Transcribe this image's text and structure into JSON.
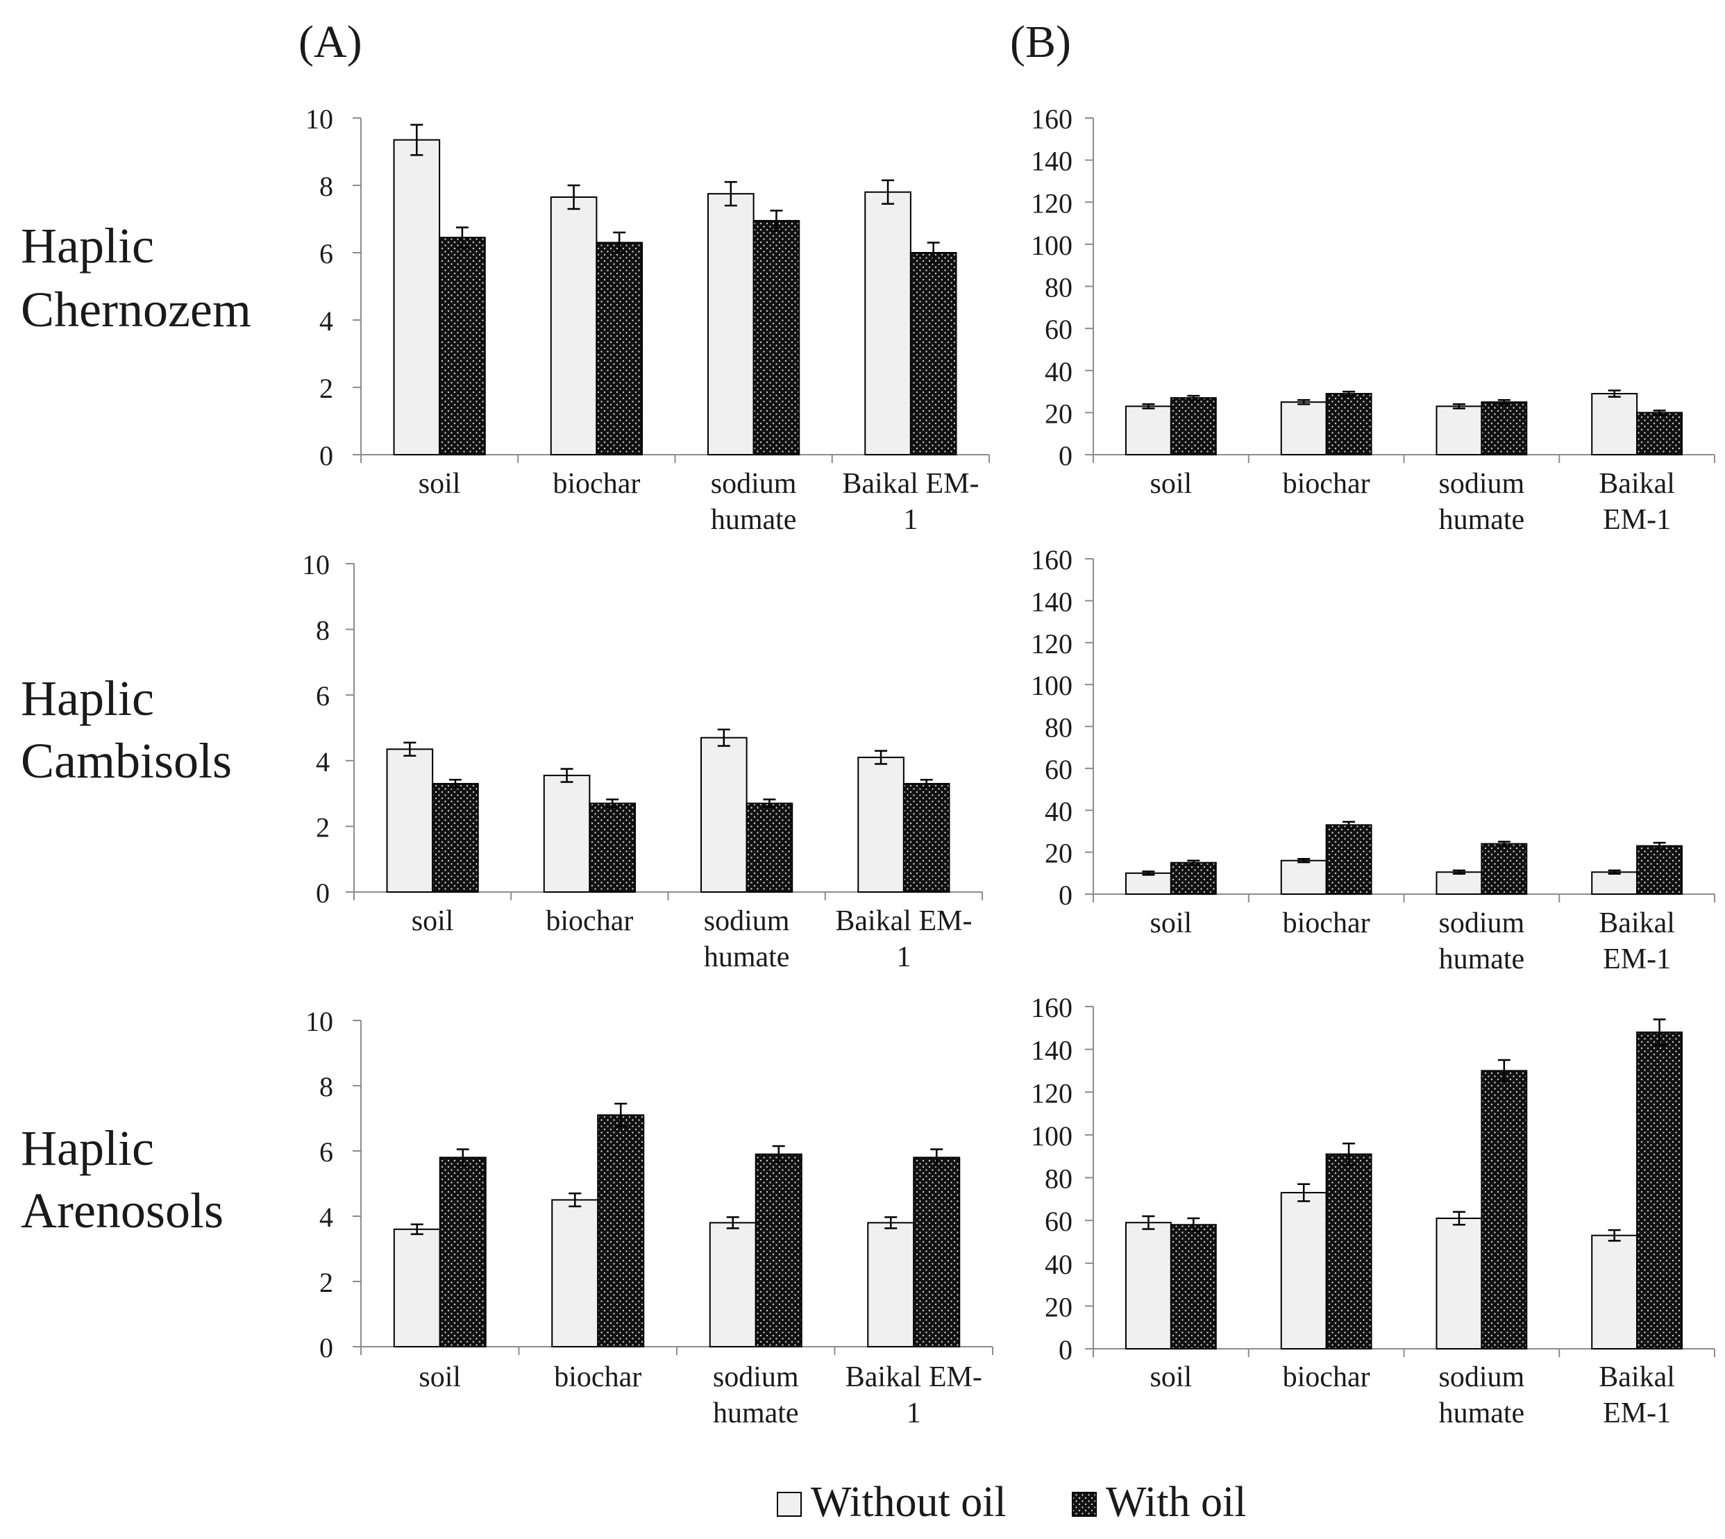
{
  "panel_labels": [
    "(A)",
    "(B)"
  ],
  "row_labels": [
    [
      "Haplic",
      "Chernozem"
    ],
    [
      "Haplic",
      "Cambisols"
    ],
    [
      "Haplic",
      "Arenosols"
    ]
  ],
  "legend": {
    "without_oil": "Without oil",
    "with_oil": "With oil"
  },
  "colors": {
    "without_oil_fill": "#f0f0f0",
    "with_oil_fill": "#111111",
    "axis": "#8c8c8c",
    "bar_outline": "#000000"
  },
  "chart_data": [
    {
      "id": "A-chernozem",
      "type": "bar",
      "title": "",
      "xlabel": "",
      "ylabel": "",
      "ylim": [
        0,
        10
      ],
      "yticks": [
        0,
        2,
        4,
        6,
        8,
        10
      ],
      "categories": [
        [
          "soil"
        ],
        [
          "biochar"
        ],
        [
          "sodium",
          "humate"
        ],
        [
          "Baikal EM-",
          "1"
        ]
      ],
      "series": [
        {
          "name": "Without oil",
          "values": [
            9.35,
            7.65,
            7.75,
            7.8
          ],
          "errors": [
            0.45,
            0.35,
            0.35,
            0.35
          ]
        },
        {
          "name": "With oil",
          "values": [
            6.45,
            6.3,
            6.95,
            6.0
          ],
          "errors": [
            0.3,
            0.3,
            0.3,
            0.3
          ]
        }
      ]
    },
    {
      "id": "B-chernozem",
      "type": "bar",
      "title": "",
      "xlabel": "",
      "ylabel": "",
      "ylim": [
        0,
        160
      ],
      "yticks": [
        0,
        20,
        40,
        60,
        80,
        100,
        120,
        140,
        160
      ],
      "categories": [
        [
          "soil"
        ],
        [
          "biochar"
        ],
        [
          "sodium",
          "humate"
        ],
        [
          "Baikal",
          "EM-1"
        ]
      ],
      "series": [
        {
          "name": "Without oil",
          "values": [
            23,
            25,
            23,
            29
          ],
          "errors": [
            1,
            1,
            1,
            1.5
          ]
        },
        {
          "name": "With oil",
          "values": [
            27,
            29,
            25,
            20
          ],
          "errors": [
            1,
            1,
            1,
            1
          ]
        }
      ]
    },
    {
      "id": "A-cambisols",
      "type": "bar",
      "title": "",
      "xlabel": "",
      "ylabel": "",
      "ylim": [
        0,
        10
      ],
      "yticks": [
        0,
        2,
        4,
        6,
        8,
        10
      ],
      "categories": [
        [
          "soil"
        ],
        [
          "biochar"
        ],
        [
          "sodium",
          "humate"
        ],
        [
          "Baikal EM-",
          "1"
        ]
      ],
      "series": [
        {
          "name": "Without oil",
          "values": [
            4.35,
            3.55,
            4.7,
            4.1
          ],
          "errors": [
            0.2,
            0.2,
            0.25,
            0.2
          ]
        },
        {
          "name": "With oil",
          "values": [
            3.3,
            2.7,
            2.7,
            3.3
          ],
          "errors": [
            0.12,
            0.12,
            0.12,
            0.12
          ]
        }
      ]
    },
    {
      "id": "B-cambisols",
      "type": "bar",
      "title": "",
      "xlabel": "",
      "ylabel": "",
      "ylim": [
        0,
        160
      ],
      "yticks": [
        0,
        20,
        40,
        60,
        80,
        100,
        120,
        140,
        160
      ],
      "categories": [
        [
          "soil"
        ],
        [
          "biochar"
        ],
        [
          "sodium",
          "humate"
        ],
        [
          "Baikal",
          "EM-1"
        ]
      ],
      "series": [
        {
          "name": "Without oil",
          "values": [
            10,
            16,
            10.5,
            10.5
          ],
          "errors": [
            0.8,
            0.8,
            0.8,
            0.8
          ]
        },
        {
          "name": "With oil",
          "values": [
            15,
            33,
            24,
            23
          ],
          "errors": [
            1,
            1.5,
            1,
            1.5
          ]
        }
      ]
    },
    {
      "id": "A-arenosols",
      "type": "bar",
      "title": "",
      "xlabel": "",
      "ylabel": "",
      "ylim": [
        0,
        10
      ],
      "yticks": [
        0,
        2,
        4,
        6,
        8,
        10
      ],
      "categories": [
        [
          "soil"
        ],
        [
          "biochar"
        ],
        [
          "sodium",
          "humate"
        ],
        [
          "Baikal EM-",
          "1"
        ]
      ],
      "series": [
        {
          "name": "Without oil",
          "values": [
            3.6,
            4.5,
            3.8,
            3.8
          ],
          "errors": [
            0.15,
            0.2,
            0.17,
            0.17
          ]
        },
        {
          "name": "With oil",
          "values": [
            5.8,
            7.1,
            5.9,
            5.8
          ],
          "errors": [
            0.25,
            0.35,
            0.25,
            0.25
          ]
        }
      ]
    },
    {
      "id": "B-arenosols",
      "type": "bar",
      "title": "",
      "xlabel": "",
      "ylabel": "",
      "ylim": [
        0,
        160
      ],
      "yticks": [
        0,
        20,
        40,
        60,
        80,
        100,
        120,
        140,
        160
      ],
      "categories": [
        [
          "soil"
        ],
        [
          "biochar"
        ],
        [
          "sodium",
          "humate"
        ],
        [
          "Baikal",
          "EM-1"
        ]
      ],
      "series": [
        {
          "name": "Without oil",
          "values": [
            59,
            73,
            61,
            53
          ],
          "errors": [
            3,
            4,
            3,
            2.5
          ]
        },
        {
          "name": "With oil",
          "values": [
            58,
            91,
            130,
            148
          ],
          "errors": [
            3,
            5,
            5,
            6
          ]
        }
      ]
    }
  ]
}
